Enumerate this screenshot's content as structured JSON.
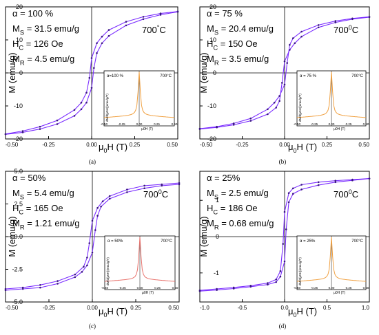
{
  "figure": {
    "panel_tags": [
      "(a)",
      "(b)",
      "(c)",
      "(d)"
    ]
  },
  "chart_data": [
    {
      "type": "line",
      "panel": "(a)",
      "ylabel": "M (emu/g)",
      "xlabel": "μ0H (T)",
      "xlim": [
        -0.5,
        0.5
      ],
      "ylim": [
        -20,
        20
      ],
      "xticks": [
        "-0.50",
        "-0.25",
        "0.00",
        "0.25",
        "0.50"
      ],
      "yticks": [
        "20",
        "10",
        "0",
        "-10",
        "-20"
      ],
      "annotations": [
        "α = 100 %",
        "MS = 31.5 emu/g",
        "HC = 126 Oe",
        "MR = 4.5 emu/g",
        "700 °C"
      ],
      "params": {
        "Ms": 31.5,
        "Hc_Oe": 126,
        "Mr": 4.5,
        "alpha_percent": 100,
        "temperature_C": 700
      },
      "series": [
        {
          "x": [
            -0.5,
            -0.4,
            -0.3,
            -0.2,
            -0.1,
            -0.06,
            -0.03,
            -0.013,
            0,
            0.03,
            0.06,
            0.1,
            0.2,
            0.3,
            0.4,
            0.5
          ],
          "y": [
            -18.5,
            -17.6,
            -16.3,
            -14.4,
            -11.2,
            -9,
            -6,
            -1.5,
            4.5,
            9,
            11,
            13,
            15.5,
            17,
            18,
            18.6
          ]
        },
        {
          "x": [
            -0.5,
            -0.4,
            -0.3,
            -0.2,
            -0.1,
            -0.06,
            -0.03,
            0,
            0.013,
            0.03,
            0.06,
            0.1,
            0.2,
            0.3,
            0.4,
            0.5
          ],
          "y": [
            -18.6,
            -18,
            -17,
            -15.5,
            -13,
            -11,
            -9,
            -4.5,
            1.5,
            6,
            9,
            11.2,
            14.4,
            16.3,
            17.6,
            18.5
          ]
        }
      ],
      "inset": {
        "title": "α=100 %",
        "temperature": "700°C",
        "ylabel": "dM/d(μ0H)(emu/g/T)",
        "xlabel": "μ0H (T)",
        "xlim": [
          -0.5,
          0.5
        ],
        "xticks": [
          "-0.50",
          "-0.25",
          "0.00",
          "0.25",
          "0.50"
        ],
        "peak_x": 0,
        "color": "#f0a040"
      }
    },
    {
      "type": "line",
      "panel": "(b)",
      "ylabel": "M (emu/g)",
      "xlabel": "μ0H (T)",
      "xlim": [
        -0.5,
        0.5
      ],
      "ylim": [
        -20,
        20
      ],
      "xticks": [
        "-0.50",
        "-0.25",
        "0.00",
        "0.25",
        "0.50"
      ],
      "yticks": [
        "20",
        "10",
        "0",
        "-10",
        "-20"
      ],
      "annotations": [
        "α = 75 %",
        "MS = 20.4 emu/g",
        "HC = 150 Oe",
        "MR = 3.5 emu/g",
        "700 0C"
      ],
      "params": {
        "Ms": 20.4,
        "Hc_Oe": 150,
        "Mr": 3.5,
        "alpha_percent": 75,
        "temperature_C": 700
      },
      "series": [
        {
          "x": [
            -0.5,
            -0.4,
            -0.3,
            -0.2,
            -0.1,
            -0.05,
            -0.03,
            -0.015,
            0,
            0.03,
            0.06,
            0.1,
            0.2,
            0.3,
            0.4,
            0.5
          ],
          "y": [
            -17,
            -16.5,
            -15.7,
            -14.5,
            -12.5,
            -10.5,
            -8.5,
            -3,
            3.5,
            7,
            9,
            11,
            13.8,
            15.3,
            16.3,
            16.9
          ]
        },
        {
          "x": [
            -0.5,
            -0.4,
            -0.3,
            -0.2,
            -0.1,
            -0.06,
            -0.03,
            0,
            0.015,
            0.03,
            0.05,
            0.1,
            0.2,
            0.3,
            0.4,
            0.5
          ],
          "y": [
            -16.9,
            -16.3,
            -15.3,
            -13.8,
            -11,
            -9,
            -7,
            -3.5,
            3,
            8.5,
            10.5,
            12.5,
            14.5,
            15.7,
            16.5,
            17
          ]
        }
      ],
      "inset": {
        "title": "α = 75 %",
        "temperature": "700°C",
        "ylabel": "dM/d(μ0H)(emu/g/T)",
        "xlabel": "μ0H (T)",
        "xlim": [
          -0.5,
          0.5
        ],
        "xticks": [
          "-0.50",
          "-0.25",
          "0.00",
          "0.25",
          "0.50"
        ],
        "peak_x": 0,
        "color": "#f0a040"
      }
    },
    {
      "type": "line",
      "panel": "(c)",
      "ylabel": "M (emu/g)",
      "xlabel": "μ0H (T)",
      "xlim": [
        -0.5,
        0.5
      ],
      "ylim": [
        -5,
        5
      ],
      "xticks": [
        "-0.50",
        "-0.25",
        "0.00",
        "0.25",
        "0.50"
      ],
      "yticks": [
        "5.0",
        "2.5",
        "0.0",
        "-2.5",
        "-5.0"
      ],
      "annotations": [
        "α = 50%",
        "MS = 5.4 emu/g",
        "HC = 165 Oe",
        "MR = 1.21 emu/g",
        "700 0C"
      ],
      "params": {
        "Ms": 5.4,
        "Hc_Oe": 165,
        "Mr": 1.21,
        "alpha_percent": 50,
        "temperature_C": 700
      },
      "series": [
        {
          "x": [
            -0.5,
            -0.4,
            -0.3,
            -0.2,
            -0.1,
            -0.05,
            -0.03,
            -0.017,
            0,
            0.03,
            0.06,
            0.1,
            0.2,
            0.3,
            0.4,
            0.5
          ],
          "y": [
            -4,
            -3.9,
            -3.7,
            -3.4,
            -2.9,
            -2.3,
            -1.6,
            -0.5,
            1.21,
            2.2,
            2.7,
            3.1,
            3.6,
            3.9,
            4,
            4.1
          ]
        },
        {
          "x": [
            -0.5,
            -0.4,
            -0.3,
            -0.2,
            -0.1,
            -0.06,
            -0.03,
            0,
            0.017,
            0.03,
            0.05,
            0.1,
            0.2,
            0.3,
            0.4,
            0.5
          ],
          "y": [
            -4.1,
            -4,
            -3.9,
            -3.6,
            -3.1,
            -2.7,
            -2.2,
            -1.21,
            0.5,
            1.6,
            2.3,
            2.9,
            3.4,
            3.7,
            3.9,
            4
          ]
        }
      ],
      "inset": {
        "title": "α = 50%",
        "temperature": "700°C",
        "ylabel": "dM/d(μ0H)(emu/g/T)",
        "xlabel": "μ0H (T)",
        "xlim": [
          -0.5,
          0.5
        ],
        "xticks": [
          "-0.50",
          "-0.25",
          "0.00",
          "0.25",
          "0.50"
        ],
        "peak_x": 0,
        "color": "#e8706a"
      }
    },
    {
      "type": "line",
      "panel": "(d)",
      "ylabel": "M (emu/g)",
      "xlabel": "μ0H (T)",
      "xlim": [
        -1.0,
        1.0
      ],
      "ylim": [
        -1.8,
        1.8
      ],
      "xticks": [
        "-1.0",
        "-0.5",
        "0.0",
        "0.5",
        "1.0"
      ],
      "yticks": [
        "1",
        "0",
        "-1"
      ],
      "annotations": [
        "α = 25%",
        "MS = 2.5 emu/g",
        "HC = 186 Oe",
        "MR = 0.68 emu/g",
        "700 0C"
      ],
      "params": {
        "Ms": 2.5,
        "Hc_Oe": 186,
        "Mr": 0.68,
        "alpha_percent": 25,
        "temperature_C": 700
      },
      "series": [
        {
          "x": [
            -1,
            -0.8,
            -0.6,
            -0.4,
            -0.2,
            -0.1,
            -0.05,
            -0.019,
            0,
            0.05,
            0.1,
            0.2,
            0.4,
            0.6,
            0.8,
            1
          ],
          "y": [
            -1.48,
            -1.44,
            -1.4,
            -1.35,
            -1.28,
            -1.18,
            -0.95,
            -0.2,
            0.68,
            1.2,
            1.33,
            1.43,
            1.5,
            1.54,
            1.57,
            1.6
          ]
        },
        {
          "x": [
            -1,
            -0.8,
            -0.6,
            -0.4,
            -0.2,
            -0.1,
            -0.05,
            0,
            0.019,
            0.05,
            0.1,
            0.2,
            0.4,
            0.6,
            0.8,
            1
          ],
          "y": [
            -1.5,
            -1.47,
            -1.43,
            -1.38,
            -1.32,
            -1.25,
            -1.1,
            -0.68,
            0.2,
            0.95,
            1.18,
            1.3,
            1.42,
            1.5,
            1.55,
            1.6
          ]
        }
      ],
      "inset": {
        "title": "α = 25%",
        "temperature": "700°C",
        "ylabel": "dM/d(μ0H)(emu/g/T)",
        "xlabel": "μ0H (T)",
        "xlim": [
          -0.5,
          0.5
        ],
        "xticks": [
          "-0.50",
          "-0.25",
          "0.00",
          "0.25",
          "0.50"
        ],
        "peak_x": 0,
        "color": "#f0a040"
      }
    }
  ],
  "colors": {
    "loop": "#7a2cff",
    "marker": "#3a1880",
    "axis": "#000000"
  }
}
